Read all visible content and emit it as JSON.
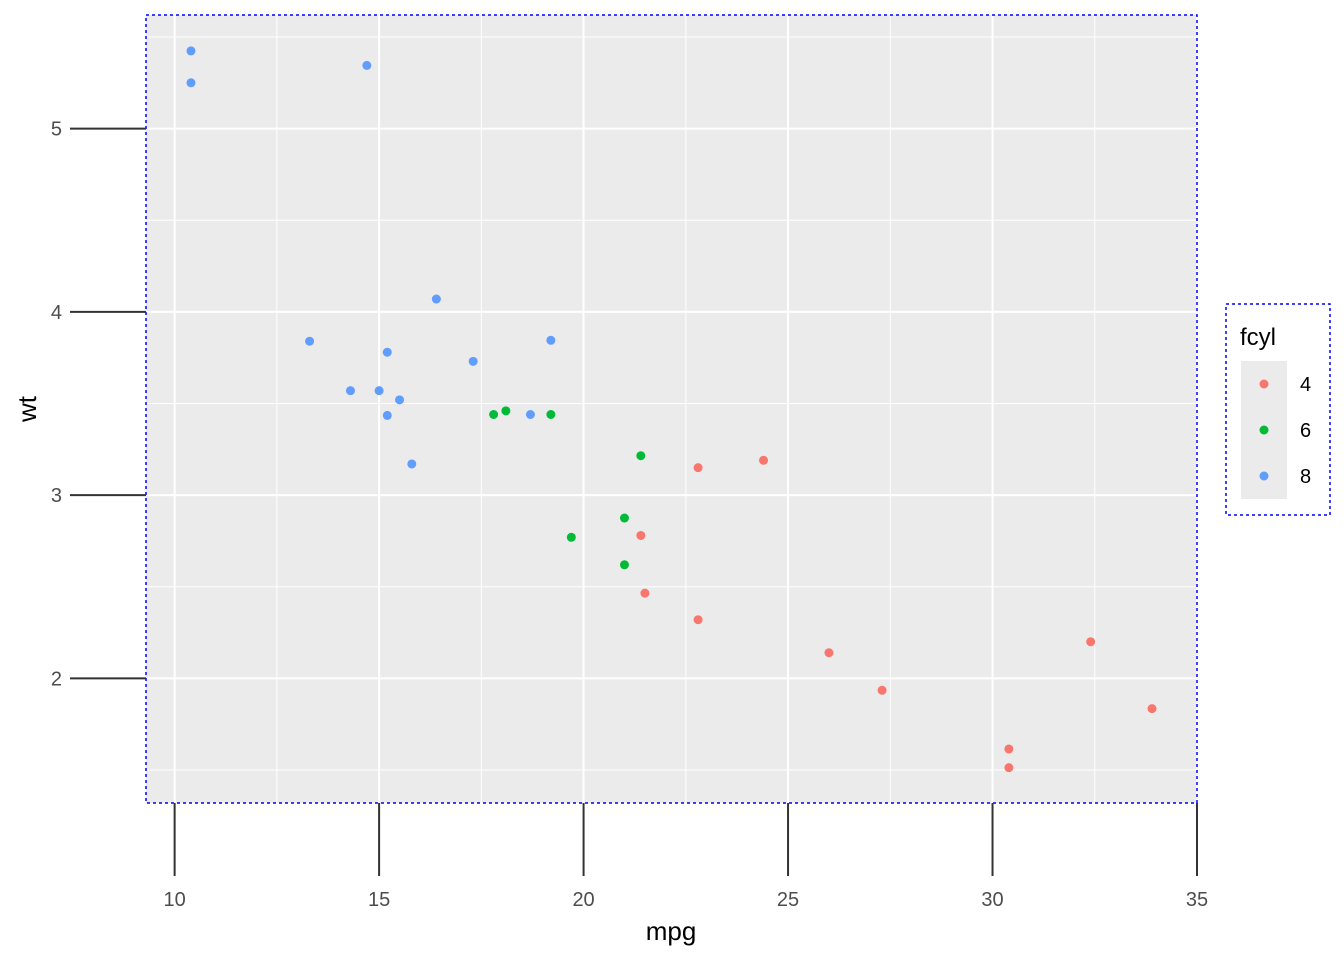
{
  "chart_data": {
    "type": "scatter",
    "xlabel": "mpg",
    "ylabel": "wt",
    "xlim": [
      9.3,
      35.0
    ],
    "ylim": [
      1.32,
      5.62
    ],
    "x_ticks": [
      10,
      15,
      20,
      25,
      30,
      35
    ],
    "y_ticks": [
      2,
      3,
      4,
      5
    ],
    "x_minor": [
      12.5,
      17.5,
      22.5,
      27.5,
      32.5
    ],
    "y_minor": [
      1.5,
      2.5,
      3.5,
      4.5,
      5.5
    ],
    "grid": true,
    "legend": {
      "title": "fcyl",
      "position": "right",
      "entries": [
        "4",
        "6",
        "8"
      ]
    },
    "series": [
      {
        "label": "4",
        "color": "#F8766D",
        "points": [
          [
            22.8,
            2.32
          ],
          [
            24.4,
            3.19
          ],
          [
            22.8,
            3.15
          ],
          [
            32.4,
            2.2
          ],
          [
            30.4,
            1.615
          ],
          [
            33.9,
            1.835
          ],
          [
            21.5,
            2.465
          ],
          [
            27.3,
            1.935
          ],
          [
            26.0,
            2.14
          ],
          [
            30.4,
            1.513
          ],
          [
            21.4,
            2.78
          ]
        ]
      },
      {
        "label": "6",
        "color": "#00BA38",
        "points": [
          [
            21.0,
            2.62
          ],
          [
            21.0,
            2.875
          ],
          [
            21.4,
            3.215
          ],
          [
            18.1,
            3.46
          ],
          [
            19.2,
            3.44
          ],
          [
            17.8,
            3.44
          ],
          [
            19.7,
            2.77
          ]
        ]
      },
      {
        "label": "8",
        "color": "#619CFF",
        "points": [
          [
            18.7,
            3.44
          ],
          [
            14.3,
            3.57
          ],
          [
            16.4,
            4.07
          ],
          [
            17.3,
            3.73
          ],
          [
            15.2,
            3.78
          ],
          [
            10.4,
            5.25
          ],
          [
            10.4,
            5.424
          ],
          [
            14.7,
            5.345
          ],
          [
            15.5,
            3.52
          ],
          [
            15.2,
            3.435
          ],
          [
            13.3,
            3.84
          ],
          [
            19.2,
            3.845
          ],
          [
            15.8,
            3.17
          ],
          [
            15.0,
            3.57
          ]
        ]
      }
    ]
  }
}
